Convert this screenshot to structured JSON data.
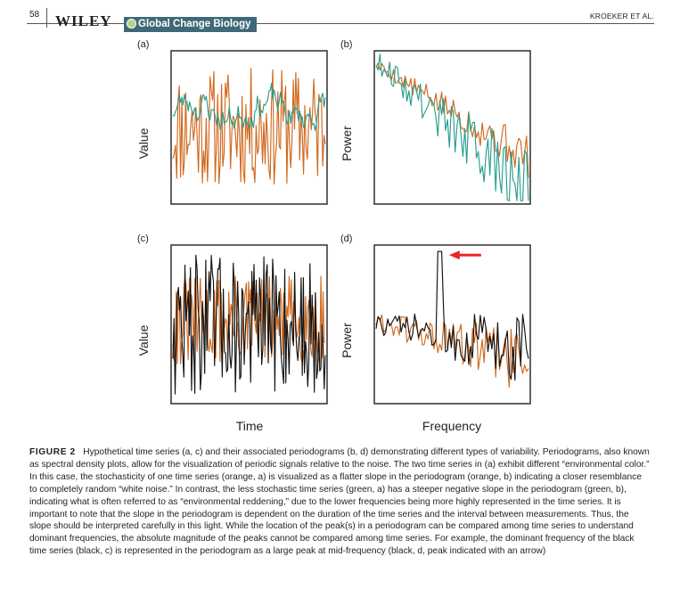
{
  "header": {
    "page_number": "58",
    "publisher": "WILEY",
    "journal": "Global Change Biology",
    "running_head": "KROEKER ET AL."
  },
  "figure": {
    "xlabels": {
      "time": "Time",
      "frequency": "Frequency"
    }
  },
  "chart_data": [
    {
      "type": "line",
      "panel_label": "(a)",
      "xlabel": "",
      "ylabel": "Value",
      "ticks": "none",
      "grid": false,
      "legend": "none",
      "xlim": [
        0,
        100
      ],
      "ylim": [
        0,
        100
      ],
      "series": [
        {
          "color": "#d2691e",
          "seed": 11,
          "n": 120,
          "base": 50,
          "amp": 40,
          "lowpass": 0.0
        },
        {
          "color": "#2a9d8f",
          "seed": 23,
          "n": 120,
          "base": 62,
          "amp": 14,
          "lowpass": 0.75
        }
      ]
    },
    {
      "type": "line",
      "panel_label": "(b)",
      "xlabel": "",
      "ylabel": "Power",
      "ticks": "none",
      "grid": false,
      "legend": "none",
      "xlim": [
        0,
        100
      ],
      "ylim": [
        0,
        100
      ],
      "series": [
        {
          "color": "#d2691e",
          "start": 92,
          "end": 30,
          "n": 80,
          "noise": 12,
          "seed": 5
        },
        {
          "color": "#2a9d8f",
          "start": 95,
          "end": 5,
          "n": 80,
          "noise": 22,
          "seed": 9
        }
      ]
    },
    {
      "type": "line",
      "panel_label": "(c)",
      "xlabel": "",
      "ylabel": "Value",
      "ticks": "none",
      "grid": false,
      "legend": "none",
      "xlim": [
        0,
        100
      ],
      "ylim": [
        0,
        100
      ],
      "series": [
        {
          "color": "#d2691e",
          "seed": 31,
          "n": 140,
          "base": 52,
          "amp": 30,
          "lowpass": 0.0
        },
        {
          "color": "#111111",
          "seed": 47,
          "n": 140,
          "base": 50,
          "amp": 45,
          "lowpass": 0.0
        }
      ]
    },
    {
      "type": "line",
      "panel_label": "(d)",
      "xlabel": "",
      "ylabel": "Power",
      "ticks": "none",
      "grid": false,
      "legend": "none",
      "xlim": [
        0,
        100
      ],
      "ylim": [
        0,
        100
      ],
      "annotation": {
        "type": "arrow",
        "color": "#e8262b",
        "points_to": "dominant-peak",
        "peak_x": 42,
        "peak_y": 97
      },
      "series": [
        {
          "color": "#d2691e",
          "start": 52,
          "end": 25,
          "n": 80,
          "noise": 18,
          "seed": 61
        },
        {
          "color": "#111111",
          "start": 50,
          "end": 35,
          "n": 80,
          "noise": 20,
          "seed": 73,
          "peak_x": 42,
          "peak_y": 97
        }
      ]
    }
  ],
  "caption": {
    "title": "FIGURE 2",
    "text": "Hypothetical time series (a, c) and their associated periodograms (b, d) demonstrating different types of variability. Periodograms, also known as spectral density plots, allow for the visualization of periodic signals relative to the noise. The two time series in (a) exhibit different “environmental color.” In this case, the stochasticity of one time series (orange, a) is visualized as a flatter slope in the periodogram (orange, b) indicating a closer resemblance to completely random “white noise.” In contrast, the less stochastic time series (green, a) has a steeper negative slope in the periodogram (green, b), indicating what is often referred to as “environmental reddening,” due to the lower frequencies being more highly represented in the time series. It is important to note that the slope in the periodogram is dependent on the duration of the time series and the interval between measurements. Thus, the slope should be interpreted carefully in this light. While the location of the peak(s) in a periodogram can be compared among time series to understand dominant frequencies, the absolute magnitude of the peaks cannot be compared among time series. For example, the dominant frequency of the black time series (black, c) is represented in the periodogram as a large peak at mid-frequency (black, d, peak indicated with an arrow)"
  }
}
